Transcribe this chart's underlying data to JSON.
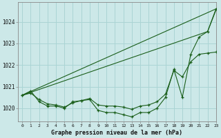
{
  "title": "Graphe pression niveau de la mer (hPa)",
  "background_color": "#cce8e8",
  "grid_color": "#aad4d4",
  "line_color": "#1a5e1a",
  "xlim": [
    -0.5,
    23
  ],
  "ylim": [
    1019.4,
    1024.9
  ],
  "yticks": [
    1020,
    1021,
    1022,
    1023,
    1024
  ],
  "xtick_labels": [
    "0",
    "1",
    "2",
    "3",
    "4",
    "5",
    "6",
    "7",
    "8",
    "9",
    "10",
    "11",
    "12",
    "13",
    "14",
    "15",
    "16",
    "17",
    "18",
    "19",
    "20",
    "21",
    "22",
    "23"
  ],
  "lines": [
    {
      "x": [
        0,
        1,
        2,
        3,
        4,
        5,
        6,
        7,
        8,
        9,
        10,
        11,
        12,
        13,
        14,
        15,
        16,
        17,
        18,
        19,
        20,
        21,
        22,
        23
      ],
      "y": [
        1020.6,
        1020.8,
        1020.3,
        1020.1,
        1020.1,
        1020.0,
        1020.3,
        1020.35,
        1020.4,
        1019.9,
        1019.8,
        1019.8,
        1019.7,
        1019.6,
        1019.8,
        1019.8,
        1020.0,
        1020.5,
        1021.8,
        1020.5,
        1022.5,
        1023.3,
        1023.55,
        1024.6
      ],
      "has_markers": true
    },
    {
      "x": [
        0,
        23
      ],
      "y": [
        1020.6,
        1024.6
      ],
      "has_markers": false
    },
    {
      "x": [
        0,
        22,
        23
      ],
      "y": [
        1020.6,
        1023.55,
        1024.55
      ],
      "has_markers": false
    },
    {
      "x": [
        0,
        1,
        2,
        3,
        4,
        5,
        6,
        7,
        8,
        9,
        10,
        11,
        12,
        13,
        14,
        15,
        16,
        17,
        18,
        19,
        20,
        21,
        22,
        23
      ],
      "y": [
        1020.6,
        1020.7,
        1020.4,
        1020.2,
        1020.15,
        1020.05,
        1020.25,
        1020.35,
        1020.45,
        1020.15,
        1020.1,
        1020.1,
        1020.05,
        1019.95,
        1020.1,
        1020.15,
        1020.3,
        1020.65,
        1021.75,
        1021.45,
        1022.15,
        1022.5,
        1022.55,
        1022.6
      ],
      "has_markers": true
    }
  ]
}
